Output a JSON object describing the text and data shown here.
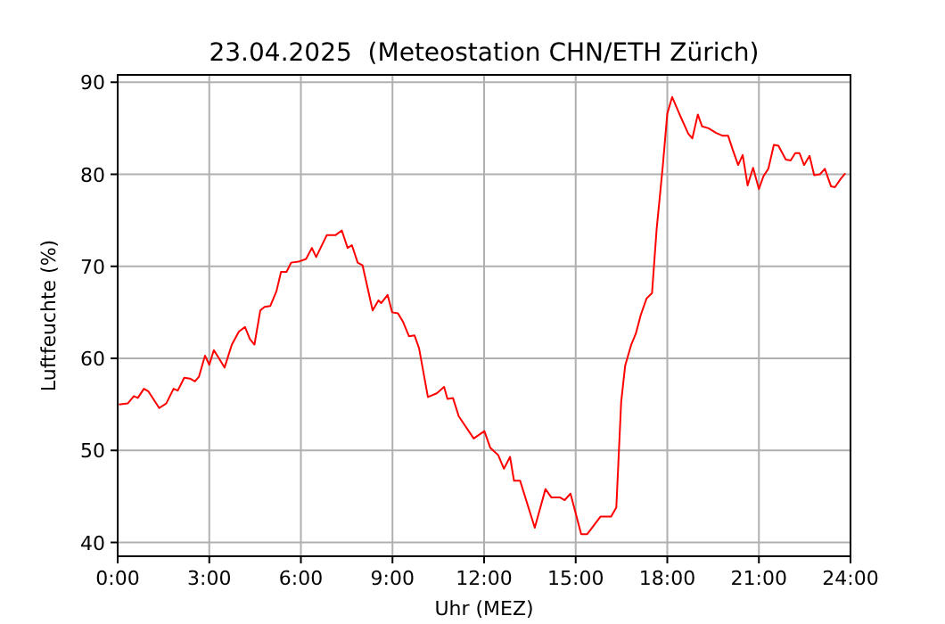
{
  "chart_data": {
    "type": "line",
    "title": "23.04.2025  (Meteostation CHN/ETH Zürich)",
    "xlabel": "Uhr (MEZ)",
    "ylabel": "Luftfeuchte (%)",
    "xlim": [
      0,
      24
    ],
    "ylim": [
      38.5,
      90.8
    ],
    "xticks": [
      {
        "value": 0,
        "label": "0:00"
      },
      {
        "value": 3,
        "label": "3:00"
      },
      {
        "value": 6,
        "label": "6:00"
      },
      {
        "value": 9,
        "label": "9:00"
      },
      {
        "value": 12,
        "label": "12:00"
      },
      {
        "value": 15,
        "label": "15:00"
      },
      {
        "value": 18,
        "label": "18:00"
      },
      {
        "value": 21,
        "label": "21:00"
      },
      {
        "value": 24,
        "label": "24:00"
      }
    ],
    "yticks": [
      40,
      50,
      60,
      70,
      80,
      90
    ],
    "grid": true,
    "series": [
      {
        "color": "#ff0000",
        "x": [
          0.04,
          0.33,
          0.53,
          0.66,
          0.86,
          1.01,
          1.36,
          1.59,
          1.83,
          1.97,
          2.18,
          2.37,
          2.53,
          2.66,
          2.86,
          3.0,
          3.15,
          3.3,
          3.5,
          3.74,
          3.97,
          4.17,
          4.33,
          4.48,
          4.67,
          4.81,
          5.0,
          5.2,
          5.35,
          5.53,
          5.68,
          5.92,
          6.17,
          6.36,
          6.5,
          6.85,
          7.14,
          7.34,
          7.53,
          7.67,
          7.86,
          8.02,
          8.35,
          8.54,
          8.63,
          8.84,
          8.99,
          9.18,
          9.34,
          9.54,
          9.72,
          9.87,
          10.16,
          10.45,
          10.69,
          10.8,
          10.98,
          11.17,
          11.66,
          12.01,
          12.2,
          12.46,
          12.65,
          12.85,
          12.98,
          13.18,
          13.66,
          14.01,
          14.2,
          14.48,
          14.64,
          14.83,
          15.18,
          15.38,
          15.81,
          16.16,
          16.33,
          16.49,
          16.62,
          16.82,
          16.97,
          17.13,
          17.32,
          17.5,
          17.65,
          17.85,
          18.0,
          18.16,
          18.43,
          18.69,
          18.82,
          19.0,
          19.14,
          19.35,
          19.6,
          19.8,
          19.99,
          20.15,
          20.32,
          20.47,
          20.63,
          20.81,
          21.0,
          21.15,
          21.31,
          21.49,
          21.64,
          21.88,
          22.04,
          22.19,
          22.33,
          22.48,
          22.66,
          22.81,
          23.0,
          23.16,
          23.36,
          23.49,
          23.68,
          23.83
        ],
        "values": [
          55.0,
          55.1,
          55.9,
          55.7,
          56.7,
          56.4,
          54.6,
          55.1,
          56.7,
          56.5,
          57.9,
          57.8,
          57.5,
          58.0,
          60.3,
          59.3,
          60.9,
          60.1,
          59.0,
          61.5,
          62.9,
          63.4,
          62.1,
          61.5,
          65.2,
          65.6,
          65.7,
          67.3,
          69.4,
          69.4,
          70.4,
          70.5,
          70.8,
          72.0,
          71.0,
          73.4,
          73.4,
          73.9,
          72.0,
          72.3,
          70.4,
          70.1,
          65.2,
          66.3,
          66.0,
          66.9,
          65.0,
          64.9,
          64.0,
          62.4,
          62.5,
          61.1,
          55.8,
          56.2,
          56.9,
          55.6,
          55.7,
          53.7,
          51.3,
          52.1,
          50.3,
          49.5,
          48.0,
          49.3,
          46.7,
          46.7,
          41.6,
          45.8,
          44.9,
          44.9,
          44.6,
          45.3,
          40.9,
          40.9,
          42.8,
          42.8,
          43.8,
          55.3,
          59.2,
          61.5,
          62.7,
          64.7,
          66.5,
          67.1,
          74.0,
          80.8,
          86.6,
          88.4,
          86.3,
          84.4,
          83.9,
          86.5,
          85.2,
          85.0,
          84.5,
          84.2,
          84.2,
          82.6,
          81.0,
          82.1,
          78.8,
          80.7,
          78.4,
          79.8,
          80.6,
          83.2,
          83.1,
          81.6,
          81.5,
          82.3,
          82.3,
          81.0,
          82.0,
          79.9,
          80.0,
          80.6,
          78.7,
          78.6,
          79.5,
          80.1
        ]
      }
    ]
  }
}
